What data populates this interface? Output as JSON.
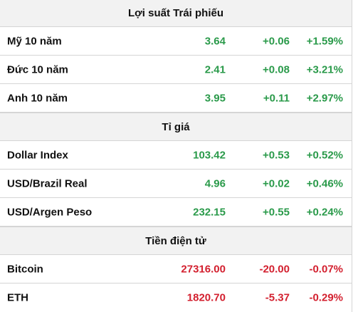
{
  "colors": {
    "up": "#2a9a4a",
    "down": "#d3202f",
    "header_bg": "#f2f2f2",
    "border": "#d5d5d5"
  },
  "sections": [
    {
      "title": "Lợi suất Trái phiếu",
      "rows": [
        {
          "name": "Mỹ 10 năm",
          "value": "3.64",
          "change": "+0.06",
          "percent": "+1.59%",
          "direction": "up"
        },
        {
          "name": "Đức 10 năm",
          "value": "2.41",
          "change": "+0.08",
          "percent": "+3.21%",
          "direction": "up"
        },
        {
          "name": "Anh 10 năm",
          "value": "3.95",
          "change": "+0.11",
          "percent": "+2.97%",
          "direction": "up"
        }
      ]
    },
    {
      "title": "Tỉ giá",
      "rows": [
        {
          "name": "Dollar Index",
          "value": "103.42",
          "change": "+0.53",
          "percent": "+0.52%",
          "direction": "up"
        },
        {
          "name": "USD/Brazil Real",
          "value": "4.96",
          "change": "+0.02",
          "percent": "+0.46%",
          "direction": "up"
        },
        {
          "name": "USD/Argen Peso",
          "value": "232.15",
          "change": "+0.55",
          "percent": "+0.24%",
          "direction": "up"
        }
      ]
    },
    {
      "title": "Tiền điện tử",
      "rows": [
        {
          "name": "Bitcoin",
          "value": "27316.00",
          "change": "-20.00",
          "percent": "-0.07%",
          "direction": "down"
        },
        {
          "name": "ETH",
          "value": "1820.70",
          "change": "-5.37",
          "percent": "-0.29%",
          "direction": "down"
        }
      ]
    }
  ]
}
